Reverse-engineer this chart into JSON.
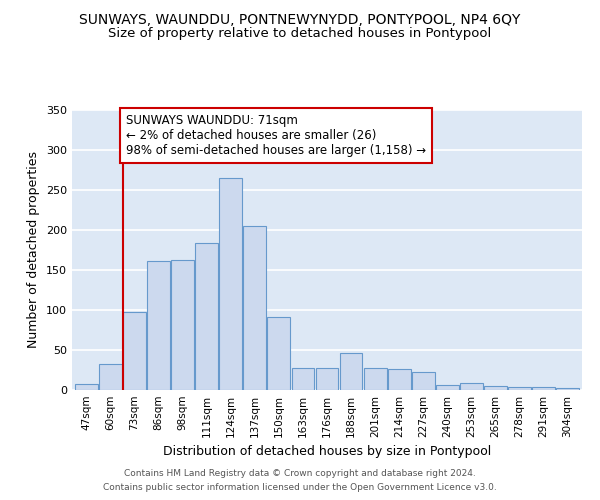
{
  "title": "SUNWAYS, WAUNDDU, PONTNEWYNYDD, PONTYPOOL, NP4 6QY",
  "subtitle": "Size of property relative to detached houses in Pontypool",
  "xlabel": "Distribution of detached houses by size in Pontypool",
  "ylabel": "Number of detached properties",
  "bar_labels": [
    "47sqm",
    "60sqm",
    "73sqm",
    "86sqm",
    "98sqm",
    "111sqm",
    "124sqm",
    "137sqm",
    "150sqm",
    "163sqm",
    "176sqm",
    "188sqm",
    "201sqm",
    "214sqm",
    "227sqm",
    "240sqm",
    "253sqm",
    "265sqm",
    "278sqm",
    "291sqm",
    "304sqm"
  ],
  "bar_values": [
    7,
    33,
    97,
    161,
    162,
    184,
    265,
    205,
    91,
    28,
    28,
    46,
    27,
    26,
    23,
    6,
    9,
    5,
    4,
    4,
    3
  ],
  "bar_color": "#ccd9ee",
  "bar_edgecolor": "#6699cc",
  "bar_linewidth": 0.8,
  "red_line_index": 2,
  "red_line_color": "#cc0000",
  "annotation_text": "SUNWAYS WAUNDDU: 71sqm\n← 2% of detached houses are smaller (26)\n98% of semi-detached houses are larger (1,158) →",
  "annotation_box_edgecolor": "#cc0000",
  "annotation_box_facecolor": "#ffffff",
  "ylim": [
    0,
    350
  ],
  "yticks": [
    0,
    50,
    100,
    150,
    200,
    250,
    300,
    350
  ],
  "background_color": "#dde8f5",
  "grid_color": "#ffffff",
  "footer_line1": "Contains HM Land Registry data © Crown copyright and database right 2024.",
  "footer_line2": "Contains public sector information licensed under the Open Government Licence v3.0.",
  "title_fontsize": 10,
  "subtitle_fontsize": 9.5,
  "xlabel_fontsize": 9,
  "ylabel_fontsize": 9,
  "annotation_fontsize": 8.5
}
